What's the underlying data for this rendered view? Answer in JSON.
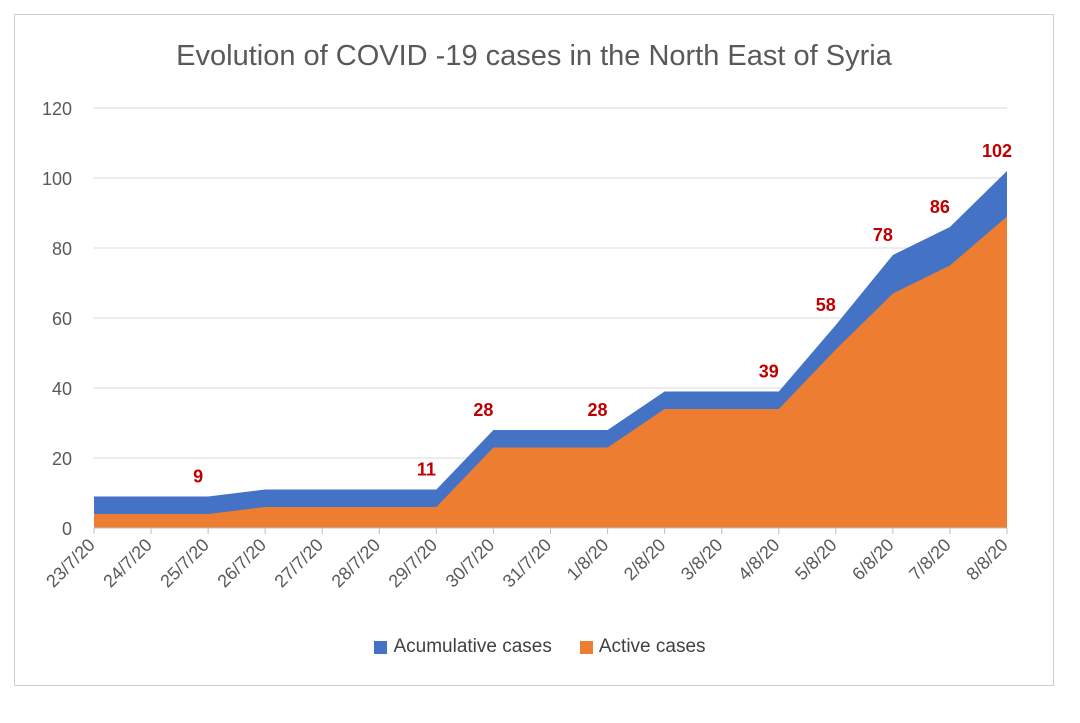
{
  "chart_data": {
    "type": "area",
    "title": "Evolution of COVID -19 cases in the North East of Syria",
    "xlabel": "",
    "ylabel": "",
    "ylim": [
      0,
      120
    ],
    "yticks": [
      "0",
      "20",
      "40",
      "60",
      "80",
      "100",
      "120"
    ],
    "categories": [
      "23/7/20",
      "24/7/20",
      "25/7/20",
      "26/7/20",
      "27/7/20",
      "28/7/20",
      "29/7/20",
      "30/7/20",
      "31/7/20",
      "1/8/20",
      "2/8/20",
      "3/8/20",
      "4/8/20",
      "5/8/20",
      "6/8/20",
      "7/8/20",
      "8/8/20"
    ],
    "series": [
      {
        "name": "Acumulative cases",
        "color": "#4472C4",
        "values": [
          9,
          9,
          9,
          11,
          11,
          11,
          11,
          28,
          28,
          28,
          39,
          39,
          39,
          58,
          78,
          86,
          102
        ]
      },
      {
        "name": "Active cases",
        "color": "#ED7D31",
        "values": [
          4,
          4,
          4,
          6,
          6,
          6,
          6,
          23,
          23,
          23,
          34,
          34,
          34,
          51,
          67,
          75,
          89
        ]
      }
    ],
    "data_labels": [
      {
        "index": 2,
        "text": "9"
      },
      {
        "index": 6,
        "text": "11"
      },
      {
        "index": 7,
        "text": "28"
      },
      {
        "index": 9,
        "text": "28"
      },
      {
        "index": 12,
        "text": "39"
      },
      {
        "index": 13,
        "text": "58"
      },
      {
        "index": 14,
        "text": "78"
      },
      {
        "index": 15,
        "text": "86"
      },
      {
        "index": 16,
        "text": "102"
      }
    ],
    "data_label_color": "#C00000",
    "grid": true,
    "legend_position": "bottom"
  }
}
